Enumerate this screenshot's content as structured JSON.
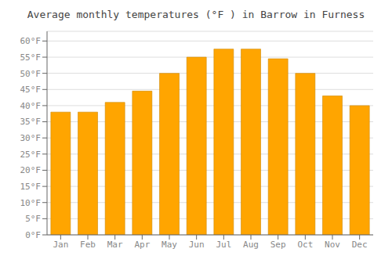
{
  "chart_data": {
    "type": "bar",
    "title": "Average monthly temperatures (°F ) in Barrow in Furness",
    "categories": [
      "Jan",
      "Feb",
      "Mar",
      "Apr",
      "May",
      "Jun",
      "Jul",
      "Aug",
      "Sep",
      "Oct",
      "Nov",
      "Dec"
    ],
    "values": [
      38,
      38,
      41,
      44.5,
      50,
      55,
      57.5,
      57.5,
      54.5,
      50,
      43,
      40
    ],
    "color": "#FFA500",
    "ylim": [
      0,
      63
    ],
    "yticks": [
      {
        "value": 0,
        "label": "0°F"
      },
      {
        "value": 5,
        "label": "5°F"
      },
      {
        "value": 10,
        "label": "10°F"
      },
      {
        "value": 15,
        "label": "15°F"
      },
      {
        "value": 20,
        "label": "20°F"
      },
      {
        "value": 25,
        "label": "25°F"
      },
      {
        "value": 30,
        "label": "30°F"
      },
      {
        "value": 35,
        "label": "35°F"
      },
      {
        "value": 40,
        "label": "40°F"
      },
      {
        "value": 45,
        "label": "45°F"
      },
      {
        "value": 50,
        "label": "50°F"
      },
      {
        "value": 55,
        "label": "55°F"
      },
      {
        "value": 60,
        "label": "60°F"
      }
    ],
    "grid": true
  }
}
